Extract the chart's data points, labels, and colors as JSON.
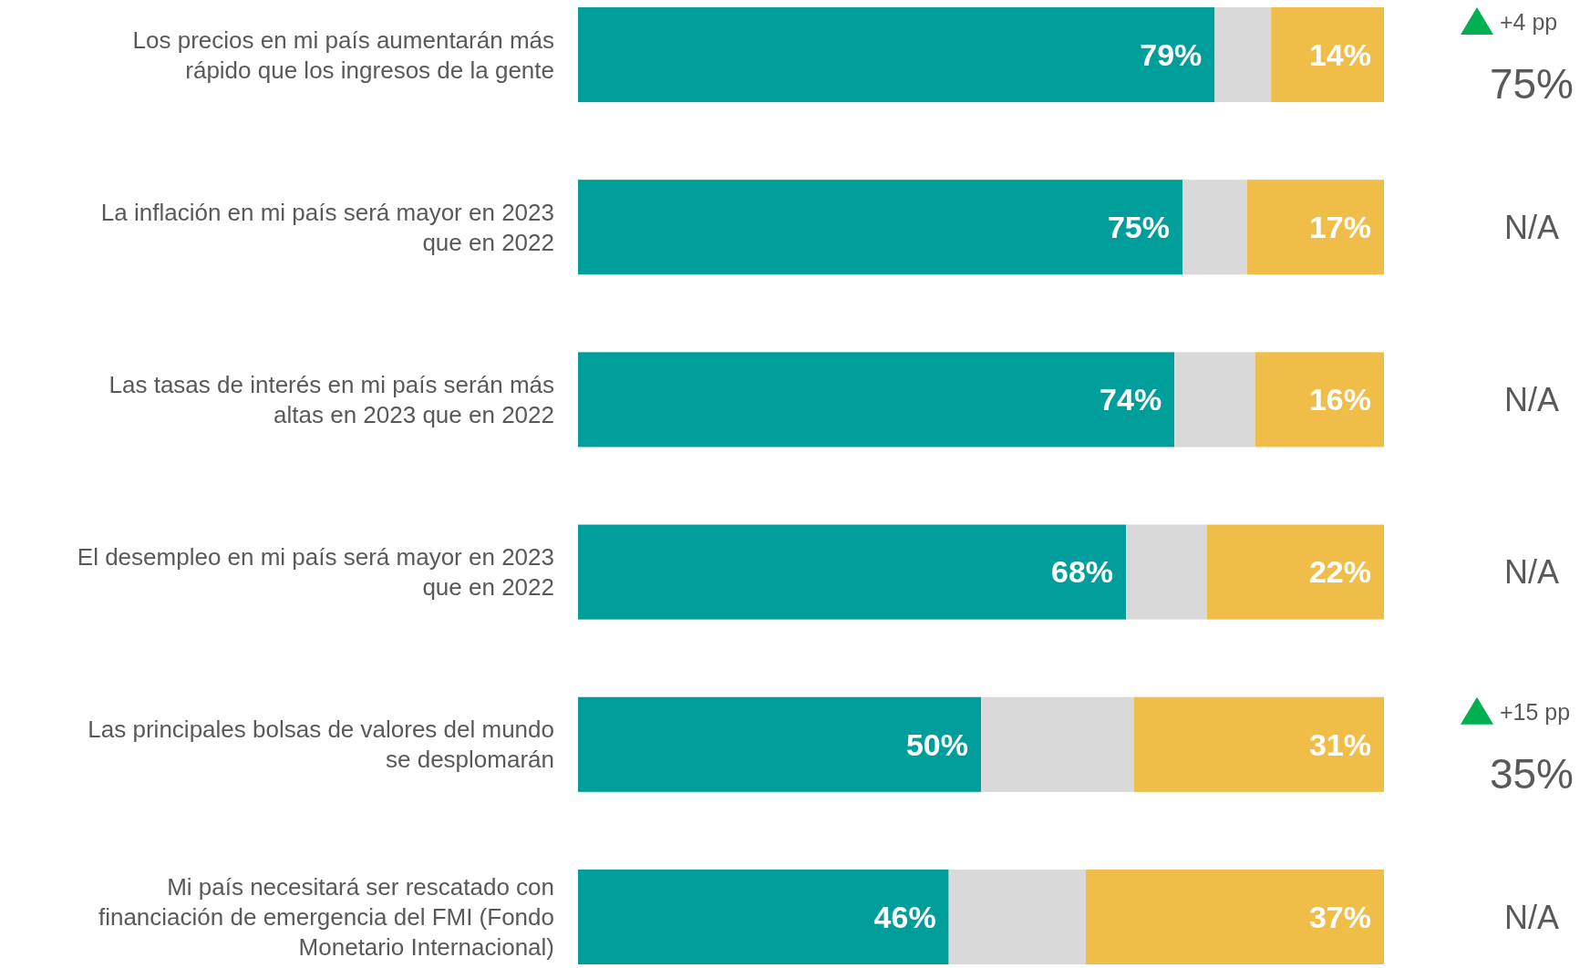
{
  "chart_data": {
    "type": "bar",
    "orientation": "horizontal",
    "stacked": true,
    "categories": [
      "Los precios en mi país aumentarán más rápido que los ingresos de la gente",
      "La inflación en mi país será mayor en 2023 que en 2022",
      "Las tasas de interés en mi país serán más altas en 2023 que en 2022",
      "El desempleo en mi país será mayor en 2023 que en 2022",
      "Las principales bolsas de valores del mundo se desplomarán",
      "Mi país necesitará ser rescatado con financiación de emergencia del FMI (Fondo Monetario Internacional)"
    ],
    "series": [
      {
        "color": "#009e9a",
        "values": [
          79,
          75,
          74,
          68,
          50,
          46
        ],
        "value_labels": [
          "79%",
          "75%",
          "74%",
          "68%",
          "50%",
          "46%"
        ]
      },
      {
        "color": "#d9d9d9",
        "values": [
          7,
          8,
          10,
          10,
          19,
          17
        ]
      },
      {
        "color": "#f0be48",
        "values": [
          14,
          17,
          16,
          22,
          31,
          37
        ],
        "value_labels": [
          "14%",
          "17%",
          "16%",
          "22%",
          "31%",
          "37%"
        ]
      }
    ],
    "annotations": [
      "+4 pp\n75%",
      "N/A",
      "N/A",
      "N/A",
      "+15 pp\n35%",
      "N/A"
    ]
  }
}
